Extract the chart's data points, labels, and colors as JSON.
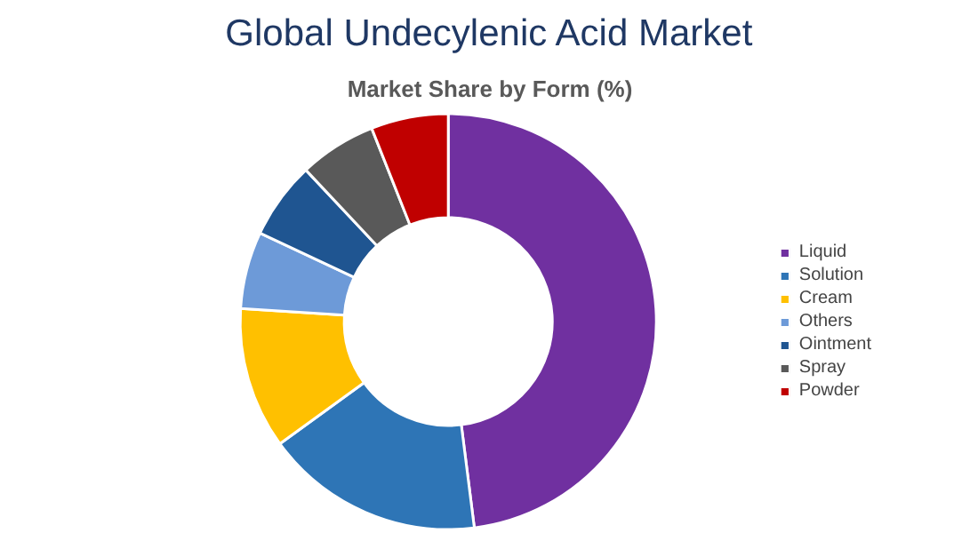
{
  "chart_data": {
    "type": "donut",
    "title": "Global Undecylenic Acid Market",
    "subtitle": "Market Share by Form (%)",
    "categories": [
      "Liquid",
      "Solution",
      "Cream",
      "Others",
      "Ointment",
      "Spray",
      "Powder"
    ],
    "values": [
      48,
      17,
      11,
      6,
      6,
      6,
      6
    ],
    "colors": [
      "#7030a0",
      "#2e75b6",
      "#ffc000",
      "#6d9ad8",
      "#1f5591",
      "#595959",
      "#c00000"
    ],
    "legend": "right"
  }
}
